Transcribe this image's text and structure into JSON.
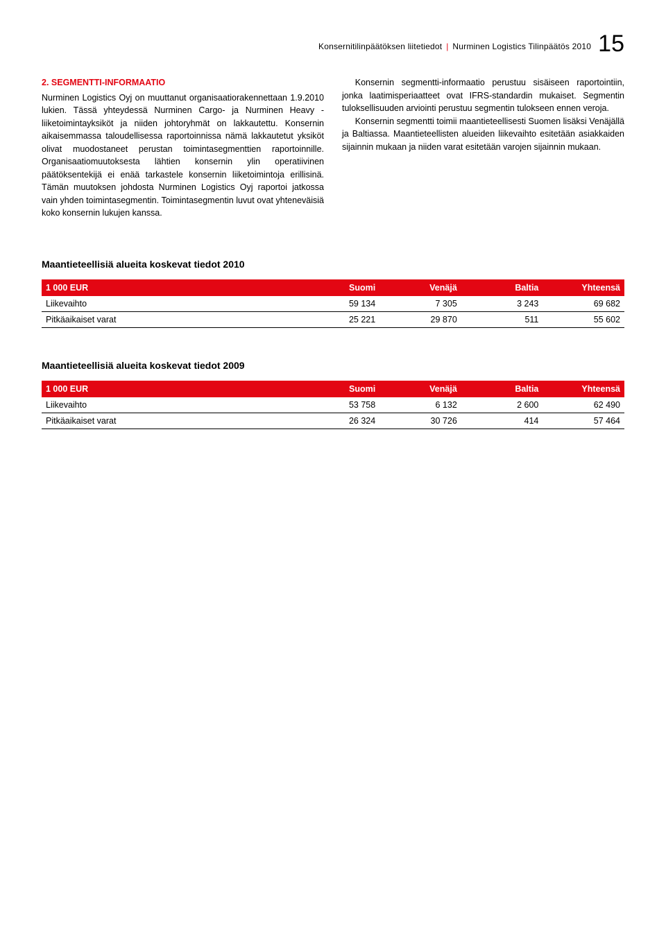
{
  "header": {
    "left": "Konsernitilinpäätöksen liitetiedot",
    "right": "Nurminen Logistics Tilinpäätös 2010",
    "page_number": "15",
    "divider_color": "#e30613"
  },
  "section": {
    "title": "2. SEGMENTTI-INFORMAATIO",
    "col1": "Nurminen Logistics Oyj on muuttanut organisaatiorakennettaan 1.9.2010 lukien. Tässä yhteydessä Nurminen Cargo- ja Nurminen Heavy -liiketoimintayksiköt ja niiden johtoryhmät on lakkautettu. Konsernin aikaisemmassa taloudellisessa raportoinnissa nämä lakkautetut yksiköt olivat muodostaneet perustan toimintasegmenttien raportoinnille. Organisaatiomuutoksesta lähtien konsernin ylin operatiivinen päätöksentekijä ei enää tarkastele konsernin liiketoimintoja erillisinä. Tämän muutoksen johdosta Nurminen Logistics Oyj raportoi jatkossa vain yhden toimintasegmentin. Toimintasegmentin luvut ovat yhteneväisiä koko konsernin lukujen kanssa.",
    "col2_p1": "Konsernin segmentti-informaatio perustuu sisäiseen raportointiin, jonka laatimisperiaatteet ovat IFRS-standardin mukaiset. Segmentin tuloksellisuuden arviointi perustuu segmentin tulokseen ennen veroja.",
    "col2_p2": "Konsernin segmentti toimii maantieteellisesti Suomen lisäksi Venäjällä ja Baltiassa. Maantieteellisten alueiden liikevaihto esitetään asiakkaiden sijainnin mukaan ja niiden varat esitetään varojen sijainnin mukaan."
  },
  "table_2010": {
    "title": "Maantieteellisiä alueita koskevat tiedot 2010",
    "type": "table",
    "header_bg": "#e30613",
    "header_fg": "#ffffff",
    "row_border": "#000000",
    "columns": [
      "1 000 EUR",
      "Suomi",
      "Venäjä",
      "Baltia",
      "Yhteensä"
    ],
    "rows": [
      [
        "Liikevaihto",
        "59 134",
        "7 305",
        "3 243",
        "69 682"
      ],
      [
        "Pitkäaikaiset varat",
        "25 221",
        "29 870",
        "511",
        "55 602"
      ]
    ]
  },
  "table_2009": {
    "title": "Maantieteellisiä alueita koskevat tiedot 2009",
    "type": "table",
    "header_bg": "#e30613",
    "header_fg": "#ffffff",
    "row_border": "#000000",
    "columns": [
      "1 000 EUR",
      "Suomi",
      "Venäjä",
      "Baltia",
      "Yhteensä"
    ],
    "rows": [
      [
        "Liikevaihto",
        "53 758",
        "6 132",
        "2 600",
        "62 490"
      ],
      [
        "Pitkäaikaiset varat",
        "26 324",
        "30 726",
        "414",
        "57 464"
      ]
    ]
  },
  "styles": {
    "accent_color": "#e30613",
    "text_color": "#000000",
    "background_color": "#ffffff",
    "body_fontsize": 12.5,
    "title_fontsize": 14,
    "pagenum_fontsize": 34
  }
}
